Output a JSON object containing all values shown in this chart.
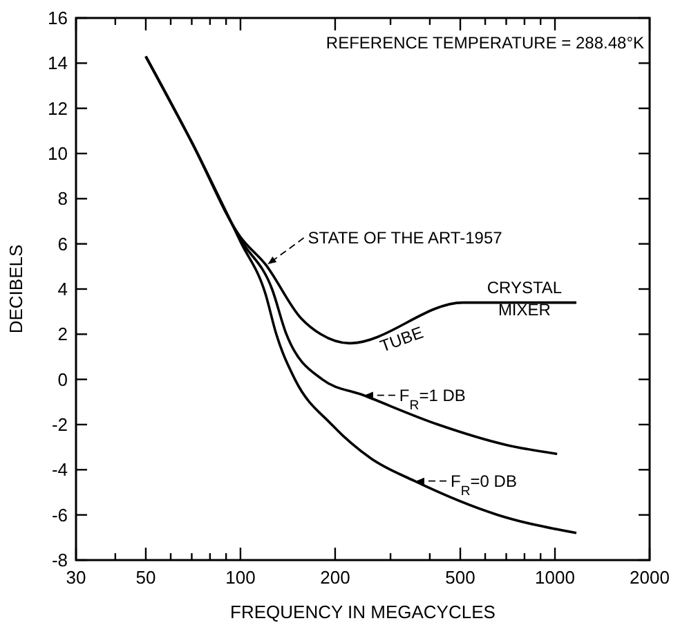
{
  "chart_data": {
    "type": "line",
    "xlabel": "FREQUENCY IN MEGACYCLES",
    "ylabel": "DECIBELS",
    "log": "x",
    "xlim": [
      30,
      2000
    ],
    "ylim": [
      -8,
      16
    ],
    "xticks": [
      30,
      {
        "value": 40,
        "label": null
      },
      50,
      {
        "value": 60,
        "label": null
      },
      {
        "value": 70,
        "label": null
      },
      {
        "value": 80,
        "label": null
      },
      {
        "value": 90,
        "label": null
      },
      100,
      200,
      {
        "value": 300,
        "label": null
      },
      {
        "value": 400,
        "label": null
      },
      500,
      {
        "value": 600,
        "label": null
      },
      {
        "value": 700,
        "label": null
      },
      {
        "value": 800,
        "label": null
      },
      {
        "value": 900,
        "label": null
      },
      1000,
      2000
    ],
    "yticks": [
      -8,
      -6,
      -4,
      -2,
      0,
      2,
      4,
      6,
      8,
      10,
      12,
      14,
      16
    ],
    "grid": false,
    "marker": "none",
    "line_style": "solid",
    "series": [
      {
        "color": "#000000",
        "x": [
          50,
          70,
          100,
          120,
          156,
          180,
          222,
          510,
          1170
        ],
        "values": [
          14.3,
          10.5,
          6.3,
          5.1,
          2.7,
          2.0,
          1.6,
          3.4,
          3.4
        ]
      },
      {
        "color": "#000000",
        "x": [
          50,
          70,
          100,
          126,
          140,
          182,
          246,
          425,
          700,
          1016
        ],
        "values": [
          14.3,
          10.5,
          6.2,
          4,
          2,
          0,
          -0.7,
          -2,
          -2.9,
          -3.3
        ]
      },
      {
        "color": "#000000",
        "x": [
          50,
          70,
          100,
          120,
          130,
          149,
          195,
          260,
          358,
          658,
          1170
        ],
        "values": [
          14.3,
          10.5,
          6.1,
          3.8,
          2,
          0,
          -2,
          -3.5,
          -4.5,
          -6,
          -6.8
        ]
      }
    ],
    "annotations": [
      "REFERENCE TEMPERATURE = 288.48°K",
      {
        "text": "STATE OF THE ART-1957",
        "x": 121,
        "y": 5.1
      },
      {
        "text": "TUBE",
        "x": 330,
        "y": 2.4
      },
      {
        "text": "CRYSTAL MIXER",
        "x": 800,
        "y": 3.4
      },
      {
        "text": "F$_{R}$=1 DB",
        "x": 246,
        "y": -0.7
      },
      {
        "text": "F$_{R}$=0 DB",
        "x": 358,
        "y": -4.5
      }
    ]
  }
}
